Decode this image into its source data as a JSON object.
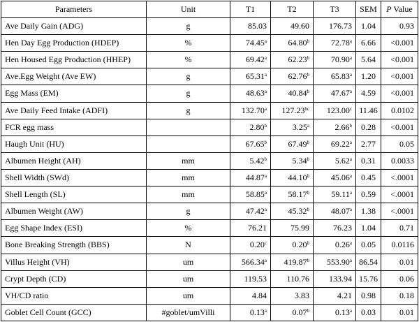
{
  "table": {
    "headers": {
      "parameters": "Parameters",
      "unit": "Unit",
      "t1": "T1",
      "t2": "T2",
      "t3": "T3",
      "sem": "SEM",
      "p_italic": "P",
      "p_rest": " Value"
    },
    "rows": [
      {
        "param": "Ave Daily Gain (ADG)",
        "unit": "g",
        "t1": "85.03",
        "t1s": "",
        "t2": "49.60",
        "t2s": "",
        "t3": "176.73",
        "t3s": "",
        "sem": "1.04",
        "p": "0.93"
      },
      {
        "param": "Hen Day Egg Production (HDEP)",
        "unit": "%",
        "t1": "74.45",
        "t1s": "a",
        "t2": "64.80",
        "t2s": "b",
        "t3": "72.78",
        "t3s": "a",
        "sem": "6.66",
        "p": "<0.001"
      },
      {
        "param": "Hen Housed Egg Production (HHEP)",
        "unit": "%",
        "t1": "69.42",
        "t1s": "a",
        "t2": "62.23",
        "t2s": "b",
        "t3": "70.90",
        "t3s": "a",
        "sem": "5.64",
        "p": "<0.001"
      },
      {
        "param": "Ave.Egg Weight (Ave EW)",
        "unit": "g",
        "t1": "65.31",
        "t1s": "a",
        "t2": "62.76",
        "t2s": "b",
        "t3": "65.83",
        "t3s": "a",
        "sem": "1.20",
        "p": "<0.001"
      },
      {
        "param": "Egg Mass (EM)",
        "unit": "g",
        "t1": "48.63",
        "t1s": "a",
        "t2": "40.84",
        "t2s": "b",
        "t3": "47.67",
        "t3s": "a",
        "sem": "4.59",
        "p": "<0.001"
      },
      {
        "param": "Ave Daily Feed Intake (ADFI)",
        "unit": "g",
        "t1": "132.70",
        "t1s": "a",
        "t2": "127.23",
        "t2s": "bc",
        "t3": "123.00",
        "t3s": "c",
        "sem": "11.46",
        "p": "0.0102"
      },
      {
        "param": "FCR egg mass",
        "unit": "",
        "t1": "2.80",
        "t1s": "b",
        "t2": "3.25",
        "t2s": "a",
        "t3": "2.66",
        "t3s": "b",
        "sem": "0.28",
        "p": "<0.001"
      },
      {
        "param": "Haugh Unit (HU)",
        "unit": "",
        "t1": "67.65",
        "t1s": "b",
        "t2": "67.49",
        "t2s": "b",
        "t3": "69.22",
        "t3s": "a",
        "sem": "2.77",
        "p": "0.05"
      },
      {
        "param": "Albumen Height (AH)",
        "unit": "mm",
        "t1": "5.42",
        "t1s": "b",
        "t2": "5.34",
        "t2s": "b",
        "t3": "5.62",
        "t3s": "a",
        "sem": "0.31",
        "p": "0.0033"
      },
      {
        "param": "Shell Width (SWd)",
        "unit": "mm",
        "t1": "44.87",
        "t1s": "a",
        "t2": "44.10",
        "t2s": "b",
        "t3": "45.06",
        "t3s": "a",
        "sem": "0.45",
        "p": "<.0001"
      },
      {
        "param": "Shell Length (SL)",
        "unit": "mm",
        "t1": "58.85",
        "t1s": "a",
        "t2": "58.17",
        "t2s": "b",
        "t3": "59.11",
        "t3s": "a",
        "sem": "0.59",
        "p": "<.0001"
      },
      {
        "param": "Albumen Weight (AW)",
        "unit": "g",
        "t1": "47.42",
        "t1s": "a",
        "t2": "45.32",
        "t2s": "b",
        "t3": "48.07",
        "t3s": "a",
        "sem": "1.38",
        "p": "<.0001"
      },
      {
        "param": "Egg Shape Index (ESI)",
        "unit": "%",
        "t1": "76.21",
        "t1s": "",
        "t2": "75.99",
        "t2s": "",
        "t3": "76.23",
        "t3s": "",
        "sem": "1.04",
        "p": "0.71"
      },
      {
        "param": "Bone Breaking Strength (BBS)",
        "unit": "N",
        "t1": "0.20",
        "t1s": "c",
        "t2": "0.20",
        "t2s": "b",
        "t3": "0.26",
        "t3s": "a",
        "sem": "0.05",
        "p": "0.0116"
      },
      {
        "param": "Villus Height (VH)",
        "unit": "um",
        "t1": "566.34",
        "t1s": "a",
        "t2": "419.87",
        "t2s": "b",
        "t3": "553.90",
        "t3s": "a",
        "sem": "86.54",
        "p": "0.01"
      },
      {
        "param": "Crypt Depth (CD)",
        "unit": "um",
        "t1": "119.53",
        "t1s": "",
        "t2": "110.76",
        "t2s": "",
        "t3": "133.94",
        "t3s": "",
        "sem": "15.76",
        "p": "0.06"
      },
      {
        "param": "VH/CD ratio",
        "unit": "um",
        "t1": "4.84",
        "t1s": "",
        "t2": "3.83",
        "t2s": "",
        "t3": "4.21",
        "t3s": "",
        "sem": "0.98",
        "p": "0.18"
      },
      {
        "param": "Goblet Cell Count (GCC)",
        "unit": "#goblet/umVilli",
        "t1": "0.13",
        "t1s": "a",
        "t2": "0.07",
        "t2s": "b",
        "t3": "0.13",
        "t3s": "a",
        "sem": "0.03",
        "p": "0.01"
      }
    ]
  }
}
